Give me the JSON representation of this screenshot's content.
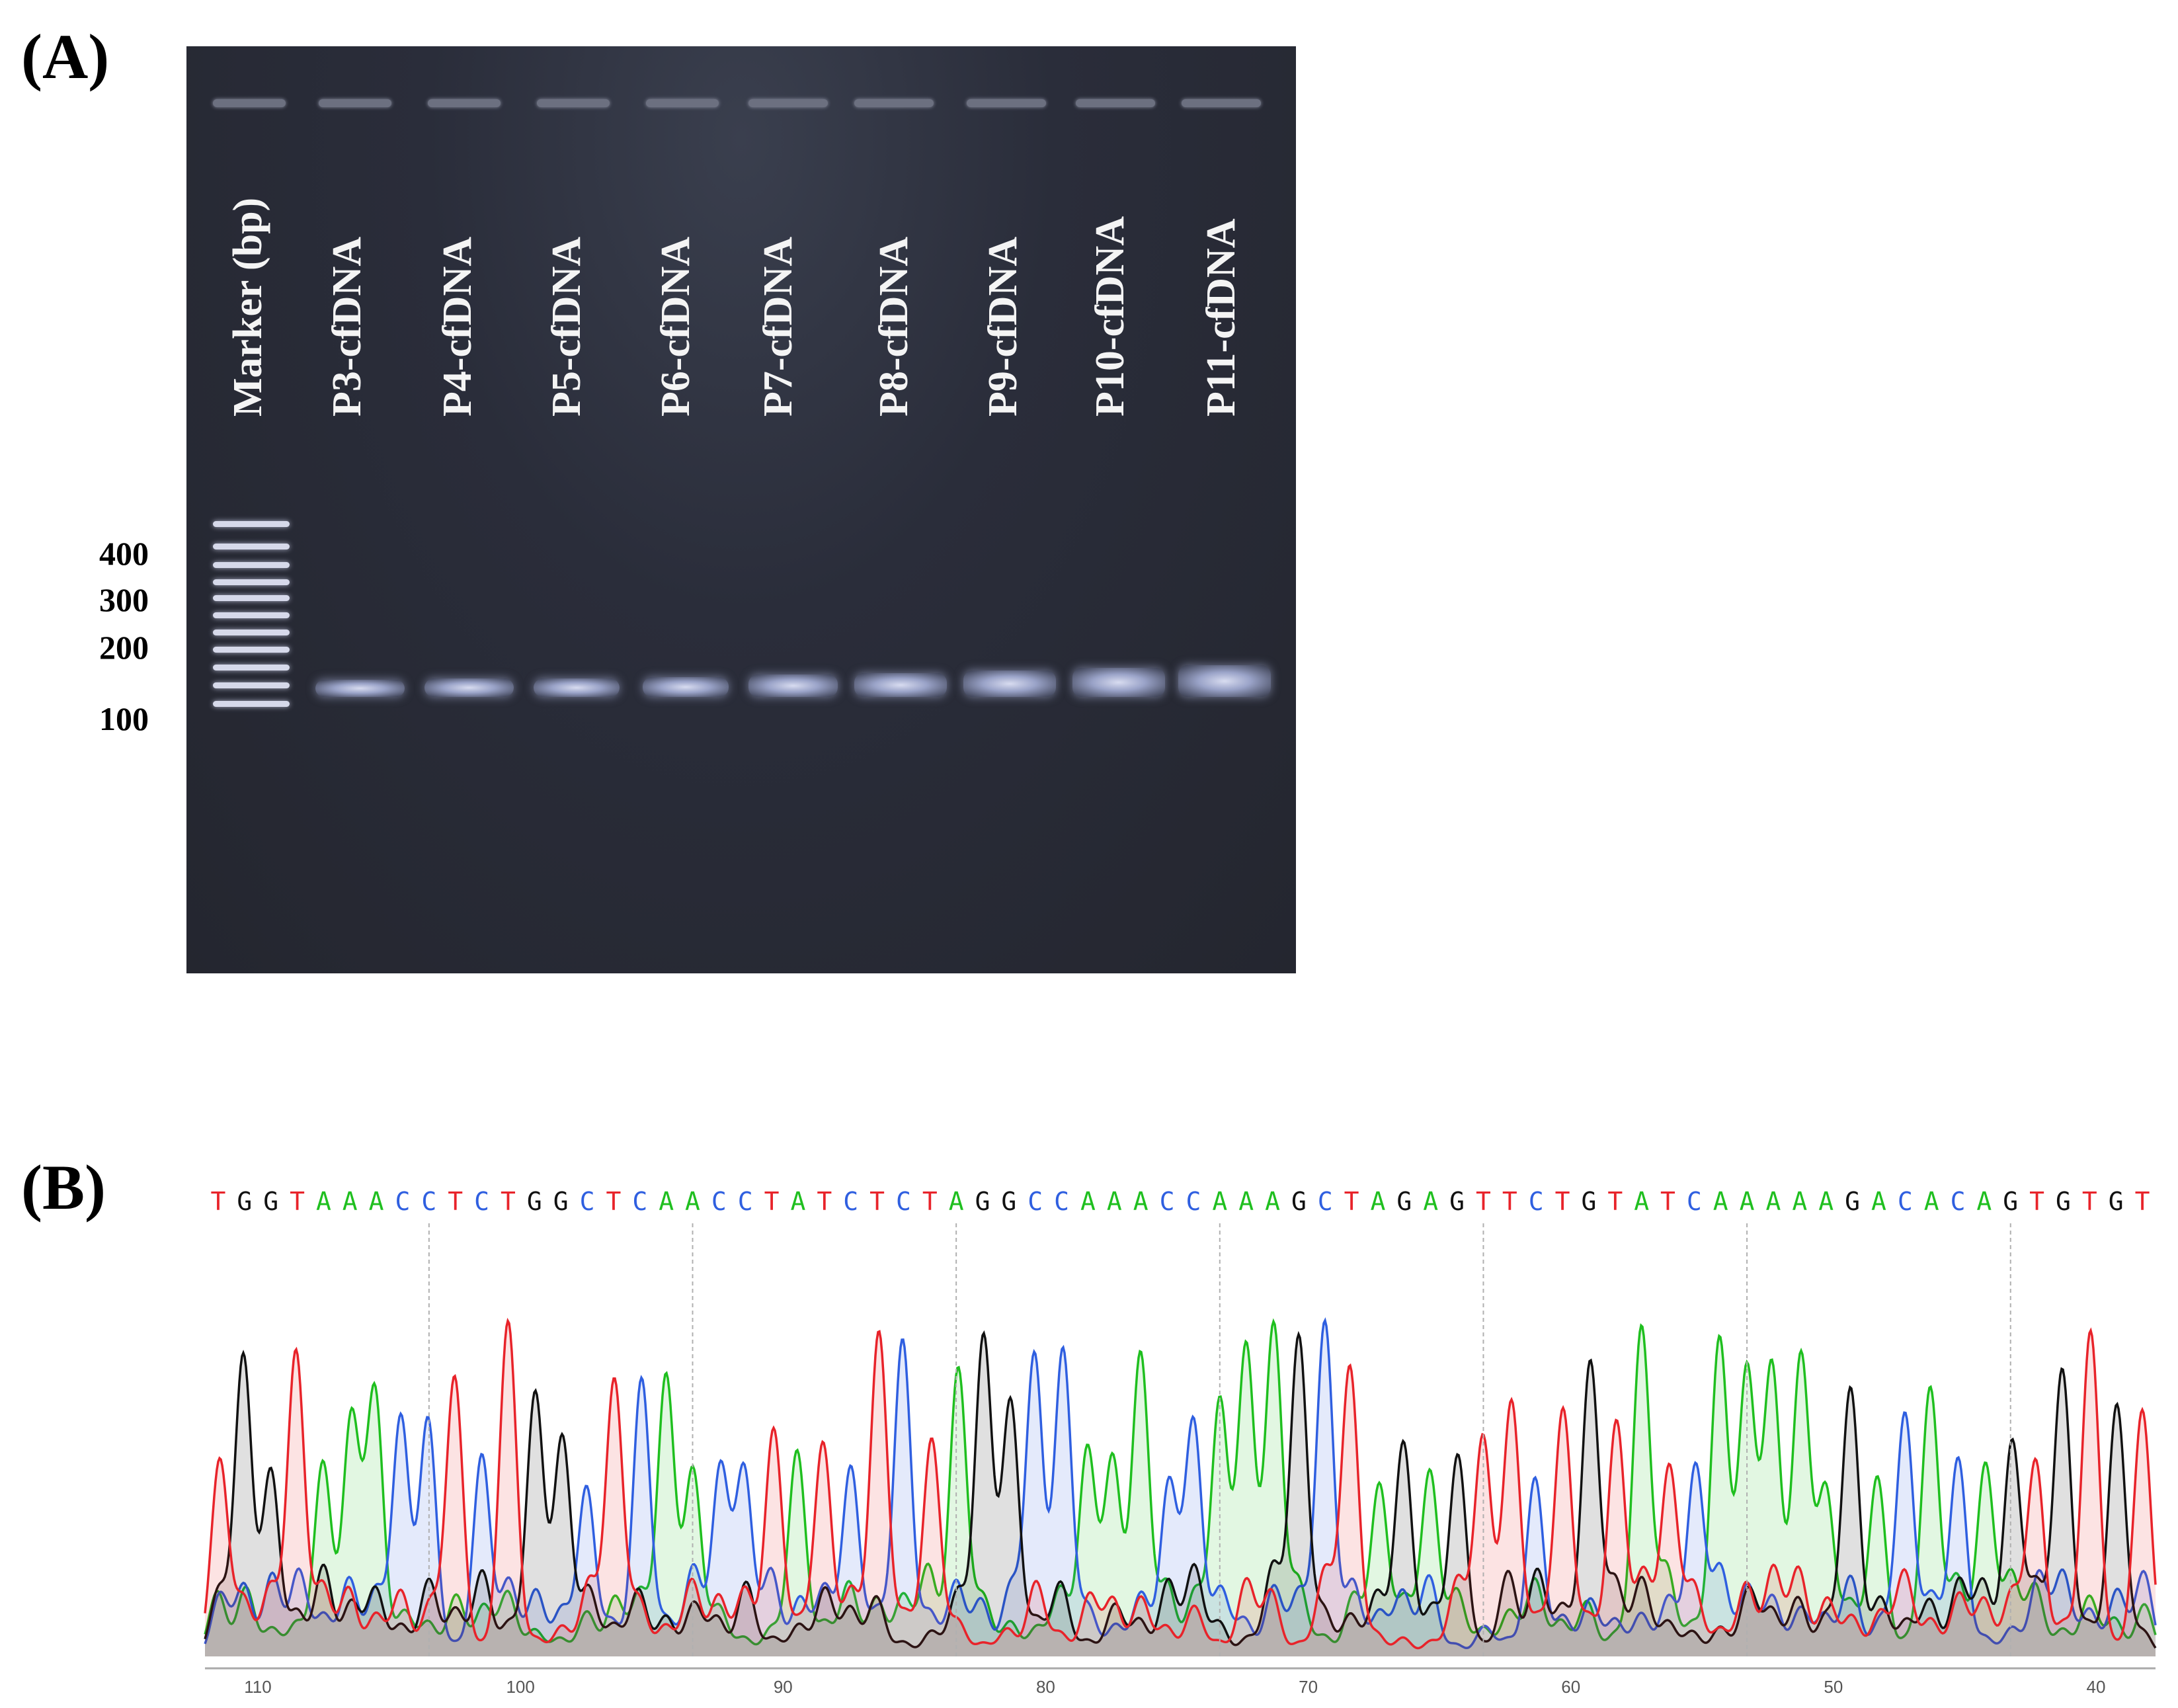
{
  "panel_a": {
    "label": "(A)",
    "marker_label": "Marker (bp)",
    "lanes": [
      "P3-cfDNA",
      "P4-cfDNA",
      "P5-cfDNA",
      "P6-cfDNA",
      "P7-cfDNA",
      "P8-cfDNA",
      "P9-cfDNA",
      "P10-cfDNA",
      "P11-cfDNA"
    ],
    "marker_sizes": [
      "400",
      "300",
      "200",
      "100"
    ]
  },
  "panel_b": {
    "label": "(B)",
    "sequence": "TGGTAAACCTCTGGCTCAACCTATCTCTAGGCCAAACCAAAGCTAGAGTTCTGTATCAAAAAGACACAGTGTGT",
    "positions": [
      "110",
      "100",
      "90",
      "80",
      "70",
      "60",
      "50",
      "40"
    ]
  },
  "colors": {
    "A": "#1fbf1f",
    "C": "#2f5fe0",
    "G": "#111111",
    "T": "#e8232a"
  }
}
